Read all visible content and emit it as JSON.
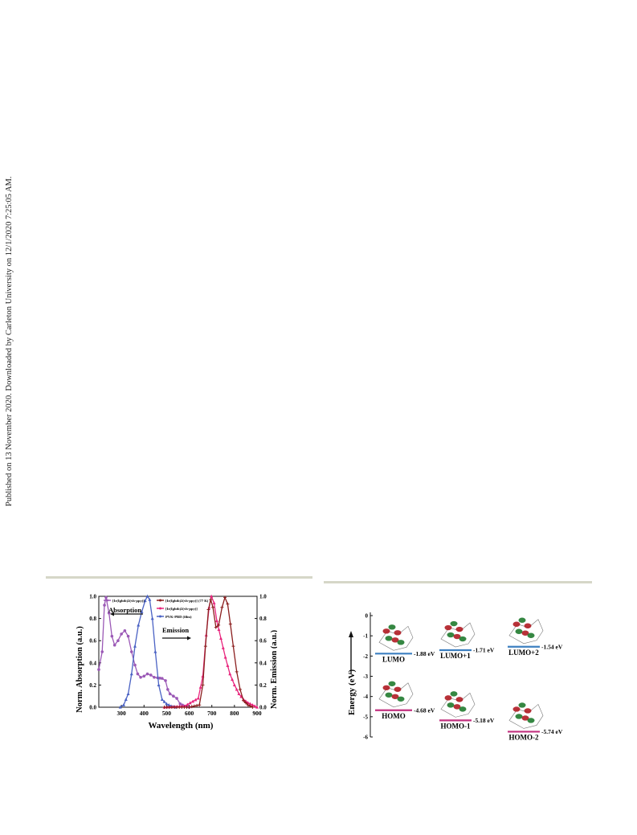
{
  "side_note": "Published on 13 November 2020. Downloaded by Carleton University on 12/1/2020 7:25:05 AM.",
  "colors": {
    "rule": "#d6d7c8",
    "purple": "#9b59b6",
    "blue": "#4a62c4",
    "pink": "#e8247c",
    "darkred": "#8b1e1e",
    "lumo_line": "#3c7fc0",
    "homo_line": "#c2307f"
  },
  "chart_data": [
    {
      "type": "line",
      "xlabel": "Wavelength (nm)",
      "ylabel_left": "Norm. Absorption (a.u.)",
      "ylabel_right": "Norm. Emission (a.u.)",
      "xlim": [
        200,
        900
      ],
      "ylim": [
        0,
        1.0
      ],
      "x_ticks": [
        "300",
        "400",
        "500",
        "600",
        "700",
        "800",
        "900"
      ],
      "y_ticks": [
        "0.0",
        "0.2",
        "0.4",
        "0.6",
        "0.8",
        "1.0"
      ],
      "annotations": {
        "absorption": "Absorption",
        "emission": "Emission"
      },
      "legend": [
        {
          "label": "[Ir(Ightb)2(vb-ppy)]",
          "color": "#9b59b6"
        },
        {
          "label": "[Ir(Ightb)2(vb-ppy)] (77 K)",
          "color": "#8b1e1e"
        },
        {
          "label": "[Ir(Ightb)2(vb-ppy)]",
          "color": "#e8247c"
        },
        {
          "label": "PVK-PBD (film)",
          "color": "#4a62c4"
        }
      ],
      "series": [
        {
          "name": "[Ir(Ightb)2(vb-ppy)] absorption",
          "color": "#9b59b6",
          "marker": "circle",
          "points": [
            [
              200,
              0.34
            ],
            [
              215,
              0.5
            ],
            [
              225,
              0.92
            ],
            [
              232,
              0.99
            ],
            [
              245,
              0.85
            ],
            [
              258,
              0.64
            ],
            [
              270,
              0.56
            ],
            [
              285,
              0.6
            ],
            [
              300,
              0.66
            ],
            [
              315,
              0.69
            ],
            [
              330,
              0.64
            ],
            [
              345,
              0.5
            ],
            [
              360,
              0.38
            ],
            [
              372,
              0.3
            ],
            [
              385,
              0.27
            ],
            [
              400,
              0.28
            ],
            [
              415,
              0.3
            ],
            [
              430,
              0.29
            ],
            [
              445,
              0.27
            ],
            [
              460,
              0.265
            ],
            [
              480,
              0.26
            ],
            [
              495,
              0.24
            ],
            [
              505,
              0.16
            ],
            [
              515,
              0.12
            ],
            [
              530,
              0.1
            ],
            [
              545,
              0.08
            ],
            [
              560,
              0.03
            ],
            [
              580,
              0.01
            ],
            [
              600,
              0.0
            ]
          ]
        },
        {
          "name": "PVK-PBD (film)",
          "color": "#4a62c4",
          "marker": "triangle",
          "points": [
            [
              295,
              0.0
            ],
            [
              310,
              0.02
            ],
            [
              330,
              0.12
            ],
            [
              345,
              0.3
            ],
            [
              360,
              0.55
            ],
            [
              375,
              0.74
            ],
            [
              390,
              0.86
            ],
            [
              405,
              0.96
            ],
            [
              415,
              1.0
            ],
            [
              425,
              0.97
            ],
            [
              437,
              0.8
            ],
            [
              450,
              0.5
            ],
            [
              465,
              0.2
            ],
            [
              480,
              0.07
            ],
            [
              500,
              0.03
            ],
            [
              520,
              0.01
            ],
            [
              540,
              0.0
            ]
          ]
        },
        {
          "name": "[Ir(Ightb)2(vb-ppy)]",
          "color": "#e8247c",
          "marker": "triangle",
          "points": [
            [
              490,
              0.0
            ],
            [
              580,
              0.01
            ],
            [
              640,
              0.08
            ],
            [
              660,
              0.28
            ],
            [
              675,
              0.65
            ],
            [
              688,
              0.9
            ],
            [
              698,
              1.0
            ],
            [
              710,
              0.94
            ],
            [
              722,
              0.78
            ],
            [
              740,
              0.62
            ],
            [
              760,
              0.45
            ],
            [
              780,
              0.3
            ],
            [
              800,
              0.2
            ],
            [
              820,
              0.12
            ],
            [
              840,
              0.07
            ],
            [
              860,
              0.04
            ],
            [
              880,
              0.02
            ],
            [
              900,
              0.0
            ]
          ]
        },
        {
          "name": "[Ir(Ightb)2(vb-ppy)] (77 K)",
          "color": "#8b1e1e",
          "marker": "plus",
          "points": [
            [
              490,
              0.0
            ],
            [
              600,
              0.0
            ],
            [
              645,
              0.02
            ],
            [
              660,
              0.2
            ],
            [
              672,
              0.55
            ],
            [
              685,
              0.88
            ],
            [
              695,
              0.97
            ],
            [
              705,
              0.9
            ],
            [
              718,
              0.72
            ],
            [
              730,
              0.74
            ],
            [
              745,
              0.9
            ],
            [
              758,
              0.99
            ],
            [
              770,
              0.93
            ],
            [
              782,
              0.75
            ],
            [
              795,
              0.55
            ],
            [
              810,
              0.32
            ],
            [
              825,
              0.16
            ],
            [
              840,
              0.06
            ],
            [
              860,
              0.02
            ],
            [
              880,
              0.0
            ]
          ]
        }
      ]
    },
    {
      "type": "diagram",
      "ylabel": "Energy (eV)",
      "ylim": [
        -6,
        0
      ],
      "y_ticks": [
        "0",
        "-1",
        "-2",
        "-3",
        "-4",
        "-5",
        "-6"
      ],
      "levels": [
        {
          "name": "LUMO",
          "energy": -1.88,
          "value_label": "-1.88 eV",
          "kind": "lumo"
        },
        {
          "name": "LUMO+1",
          "energy": -1.71,
          "value_label": "-1.71 eV",
          "kind": "lumo"
        },
        {
          "name": "LUMO+2",
          "energy": -1.54,
          "value_label": "-1.54 eV",
          "kind": "lumo"
        },
        {
          "name": "HOMO",
          "energy": -4.68,
          "value_label": "-4.68 eV",
          "kind": "homo"
        },
        {
          "name": "HOMO-1",
          "energy": -5.18,
          "value_label": "-5.18 eV",
          "kind": "homo"
        },
        {
          "name": "HOMO-2",
          "energy": -5.74,
          "value_label": "-5.74 eV",
          "kind": "homo"
        }
      ]
    }
  ]
}
